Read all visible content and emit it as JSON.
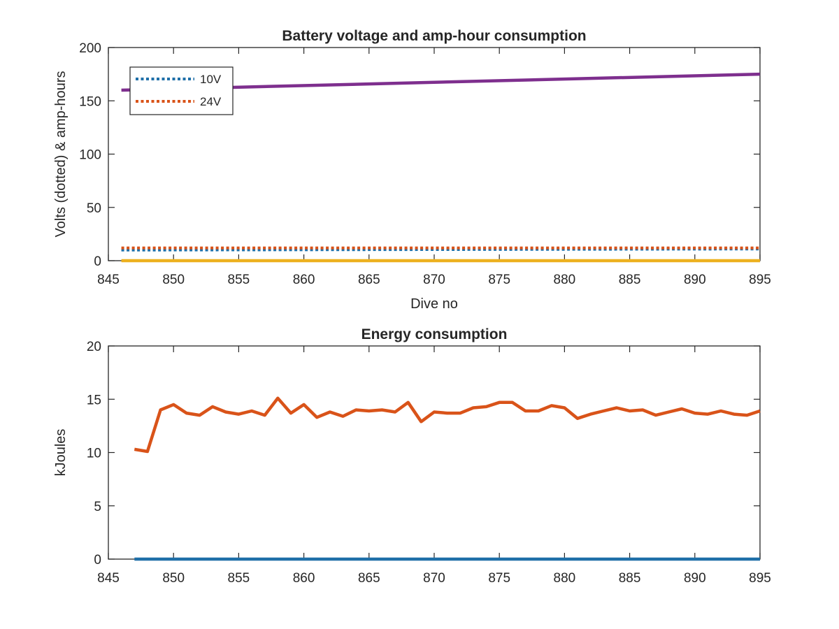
{
  "chart_data": [
    {
      "type": "line",
      "title": "Battery voltage and amp-hour consumption",
      "xlabel": "Dive no",
      "ylabel": "Volts (dotted) & amp-hours",
      "xlim": [
        845,
        895
      ],
      "ylim": [
        0,
        200
      ],
      "xticks": [
        "845",
        "850",
        "855",
        "860",
        "865",
        "870",
        "875",
        "880",
        "885",
        "890",
        "895"
      ],
      "yticks": [
        "0",
        "50",
        "100",
        "150",
        "200"
      ],
      "grid": false,
      "legend_position": "top-left",
      "series": [
        {
          "name": "10V",
          "style": "dotted",
          "color": "#1f6fa8",
          "x": [
            846,
            895
          ],
          "y": [
            10,
            11
          ]
        },
        {
          "name": "24V",
          "style": "dotted",
          "color": "#d95319",
          "x": [
            846,
            895
          ],
          "y": [
            12,
            12
          ]
        },
        {
          "style": "solid",
          "color": "#7e2f8e",
          "x": [
            846,
            895
          ],
          "y": [
            160,
            175
          ]
        },
        {
          "style": "solid",
          "color": "#edb120",
          "x": [
            846,
            895
          ],
          "y": [
            0,
            0
          ]
        }
      ]
    },
    {
      "type": "line",
      "title": "Energy consumption",
      "xlabel": "",
      "ylabel": "kJoules",
      "xlim": [
        845,
        895
      ],
      "ylim": [
        0,
        20
      ],
      "xticks": [
        "845",
        "850",
        "855",
        "860",
        "865",
        "870",
        "875",
        "880",
        "885",
        "890",
        "895"
      ],
      "yticks": [
        "0",
        "5",
        "10",
        "15",
        "20"
      ],
      "grid": false,
      "series": [
        {
          "style": "solid",
          "color": "#d95319",
          "x": [
            847,
            848,
            849,
            850,
            851,
            852,
            853,
            854,
            855,
            856,
            857,
            858,
            859,
            860,
            861,
            862,
            863,
            864,
            865,
            866,
            867,
            868,
            869,
            870,
            871,
            872,
            873,
            874,
            875,
            876,
            877,
            878,
            879,
            880,
            881,
            882,
            883,
            884,
            885,
            886,
            887,
            888,
            889,
            890,
            891,
            892,
            893,
            894,
            895
          ],
          "y": [
            10.3,
            10.1,
            14.0,
            14.5,
            13.7,
            13.5,
            14.3,
            13.8,
            13.6,
            13.9,
            13.5,
            15.1,
            13.7,
            14.5,
            13.3,
            13.8,
            13.4,
            14.0,
            13.9,
            14.0,
            13.8,
            14.7,
            12.9,
            13.8,
            13.7,
            13.7,
            14.2,
            14.3,
            14.7,
            14.7,
            13.9,
            13.9,
            14.4,
            14.2,
            13.2,
            13.6,
            13.9,
            14.2,
            13.9,
            14.0,
            13.5,
            13.8,
            14.1,
            13.7,
            13.6,
            13.9,
            13.6,
            13.5,
            13.9
          ]
        },
        {
          "style": "solid",
          "color": "#1f6fa8",
          "x": [
            847,
            895
          ],
          "y": [
            0,
            0
          ]
        }
      ]
    }
  ]
}
